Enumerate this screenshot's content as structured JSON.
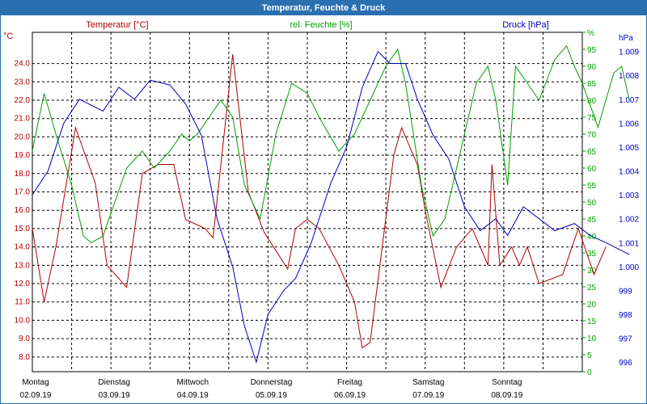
{
  "window": {
    "title": "Temperatur, Feuchte & Druck"
  },
  "chart_data": {
    "type": "line",
    "title": "Temperatur, Feuchte & Druck",
    "axes": {
      "temperature": {
        "label": "Temperatur [°C]",
        "unit": "°C",
        "min": 7.2,
        "max": 25.7,
        "ticks": [
          "8.0",
          "9.0",
          "10.0",
          "11.0",
          "12.0",
          "13.0",
          "14.0",
          "15.0",
          "16.0",
          "17.0",
          "18.0",
          "19.0",
          "20.0",
          "21.0",
          "22.0",
          "23.0",
          "24.0"
        ],
        "color": "#b00000"
      },
      "humidity": {
        "label": "rel. Feuchte [%]",
        "unit": "%",
        "min": 0,
        "max": 100,
        "ticks": [
          "0",
          "5",
          "10",
          "15",
          "20",
          "25",
          "30",
          "35",
          "40",
          "45",
          "50",
          "55",
          "60",
          "65",
          "70",
          "75",
          "80",
          "85",
          "90",
          "95",
          "%"
        ],
        "color": "#00a000"
      },
      "pressure": {
        "label": "Druck [hPa]",
        "unit": "hPa",
        "min": 995.6,
        "max": 1009.8,
        "ticks": [
          "996",
          "997",
          "998",
          "999",
          "1.000",
          "1.001",
          "1.002",
          "1.003",
          "1.004",
          "1.005",
          "1.006",
          "1.007",
          "1.008",
          "1.009",
          "hPa"
        ],
        "color": "#0000c0"
      }
    },
    "x": {
      "range_days": [
        0,
        7
      ],
      "ticks": [
        {
          "day": "Montag",
          "date": "02.09.19"
        },
        {
          "day": "Dienstag",
          "date": "03.09.19"
        },
        {
          "day": "Mittwoch",
          "date": "04.09.19"
        },
        {
          "day": "Donnerstag",
          "date": "05.09.19"
        },
        {
          "day": "Freitag",
          "date": "06.09.19"
        },
        {
          "day": "Samstag",
          "date": "07.09.19"
        },
        {
          "day": "Sonntag",
          "date": "08.09.19"
        }
      ]
    },
    "series": [
      {
        "name": "Temperatur [°C]",
        "axis": "temperature",
        "color": "#b00000",
        "points": [
          [
            0,
            15.0
          ],
          [
            0.15,
            11.0
          ],
          [
            0.3,
            14.0
          ],
          [
            0.55,
            20.5
          ],
          [
            0.8,
            17.5
          ],
          [
            0.95,
            13.0
          ],
          [
            1.2,
            11.8
          ],
          [
            1.4,
            18.0
          ],
          [
            1.6,
            18.5
          ],
          [
            1.8,
            18.5
          ],
          [
            1.95,
            15.5
          ],
          [
            2.2,
            15.0
          ],
          [
            2.3,
            14.5
          ],
          [
            2.55,
            24.5
          ],
          [
            2.75,
            17.0
          ],
          [
            2.95,
            14.8
          ],
          [
            3.25,
            12.8
          ],
          [
            3.35,
            15.0
          ],
          [
            3.5,
            15.5
          ],
          [
            3.65,
            15.0
          ],
          [
            3.9,
            13.0
          ],
          [
            4.1,
            11.0
          ],
          [
            4.2,
            8.5
          ],
          [
            4.3,
            8.8
          ],
          [
            4.6,
            19.0
          ],
          [
            4.7,
            20.5
          ],
          [
            4.9,
            18.5
          ],
          [
            5.0,
            16.0
          ],
          [
            5.2,
            11.8
          ],
          [
            5.4,
            14.0
          ],
          [
            5.6,
            15.0
          ],
          [
            5.8,
            13.0
          ],
          [
            5.85,
            18.5
          ],
          [
            5.95,
            13.0
          ],
          [
            6.1,
            14.0
          ],
          [
            6.2,
            13.0
          ],
          [
            6.3,
            14.0
          ],
          [
            6.45,
            12.0
          ],
          [
            6.75,
            12.5
          ],
          [
            6.95,
            15.0
          ],
          [
            7.15,
            12.5
          ],
          [
            7.3,
            14.0
          ]
        ]
      },
      {
        "name": "rel. Feuchte [%]",
        "axis": "humidity",
        "color": "#00a000",
        "points": [
          [
            0,
            65
          ],
          [
            0.15,
            82
          ],
          [
            0.3,
            70
          ],
          [
            0.5,
            55
          ],
          [
            0.65,
            40
          ],
          [
            0.75,
            38
          ],
          [
            0.9,
            40
          ],
          [
            1.05,
            50
          ],
          [
            1.2,
            60
          ],
          [
            1.4,
            65
          ],
          [
            1.55,
            60
          ],
          [
            1.75,
            65
          ],
          [
            1.9,
            70
          ],
          [
            2.0,
            68
          ],
          [
            2.1,
            70
          ],
          [
            2.25,
            75
          ],
          [
            2.4,
            80
          ],
          [
            2.55,
            75
          ],
          [
            2.7,
            55
          ],
          [
            2.9,
            45
          ],
          [
            3.1,
            70
          ],
          [
            3.3,
            85
          ],
          [
            3.5,
            82
          ],
          [
            3.65,
            75
          ],
          [
            3.9,
            65
          ],
          [
            4.1,
            70
          ],
          [
            4.3,
            80
          ],
          [
            4.5,
            90
          ],
          [
            4.65,
            95
          ],
          [
            4.75,
            85
          ],
          [
            4.95,
            55
          ],
          [
            5.1,
            40
          ],
          [
            5.25,
            45
          ],
          [
            5.5,
            70
          ],
          [
            5.65,
            85
          ],
          [
            5.8,
            90
          ],
          [
            5.9,
            80
          ],
          [
            6.05,
            55
          ],
          [
            6.15,
            90
          ],
          [
            6.3,
            85
          ],
          [
            6.45,
            80
          ],
          [
            6.65,
            92
          ],
          [
            6.8,
            96
          ],
          [
            6.9,
            90
          ],
          [
            7.0,
            85
          ],
          [
            7.2,
            72
          ],
          [
            7.3,
            80
          ],
          [
            7.4,
            88
          ],
          [
            7.5,
            90
          ],
          [
            7.6,
            80
          ]
        ]
      },
      {
        "name": "Druck [hPa]",
        "axis": "pressure",
        "color": "#0000c0",
        "points": [
          [
            0,
            1003.0
          ],
          [
            0.2,
            1004.0
          ],
          [
            0.4,
            1006.0
          ],
          [
            0.6,
            1007.0
          ],
          [
            0.9,
            1006.5
          ],
          [
            1.1,
            1007.5
          ],
          [
            1.3,
            1007.0
          ],
          [
            1.5,
            1007.8
          ],
          [
            1.75,
            1007.6
          ],
          [
            1.95,
            1006.8
          ],
          [
            2.15,
            1005.5
          ],
          [
            2.35,
            1002.0
          ],
          [
            2.55,
            1000.0
          ],
          [
            2.7,
            997.5
          ],
          [
            2.85,
            996.0
          ],
          [
            3.0,
            998.0
          ],
          [
            3.2,
            999.0
          ],
          [
            3.35,
            999.5
          ],
          [
            3.55,
            1001.0
          ],
          [
            3.8,
            1003.5
          ],
          [
            4.0,
            1005.0
          ],
          [
            4.2,
            1007.5
          ],
          [
            4.4,
            1009.0
          ],
          [
            4.55,
            1008.5
          ],
          [
            4.75,
            1008.5
          ],
          [
            4.9,
            1007.0
          ],
          [
            5.1,
            1005.5
          ],
          [
            5.3,
            1004.5
          ],
          [
            5.5,
            1002.5
          ],
          [
            5.7,
            1001.5
          ],
          [
            5.9,
            1002.0
          ],
          [
            6.05,
            1001.3
          ],
          [
            6.25,
            1002.5
          ],
          [
            6.45,
            1002.0
          ],
          [
            6.65,
            1001.5
          ],
          [
            6.9,
            1001.8
          ],
          [
            7.1,
            1001.3
          ],
          [
            7.3,
            1001.0
          ],
          [
            7.6,
            1000.5
          ]
        ]
      }
    ],
    "grid": true
  }
}
